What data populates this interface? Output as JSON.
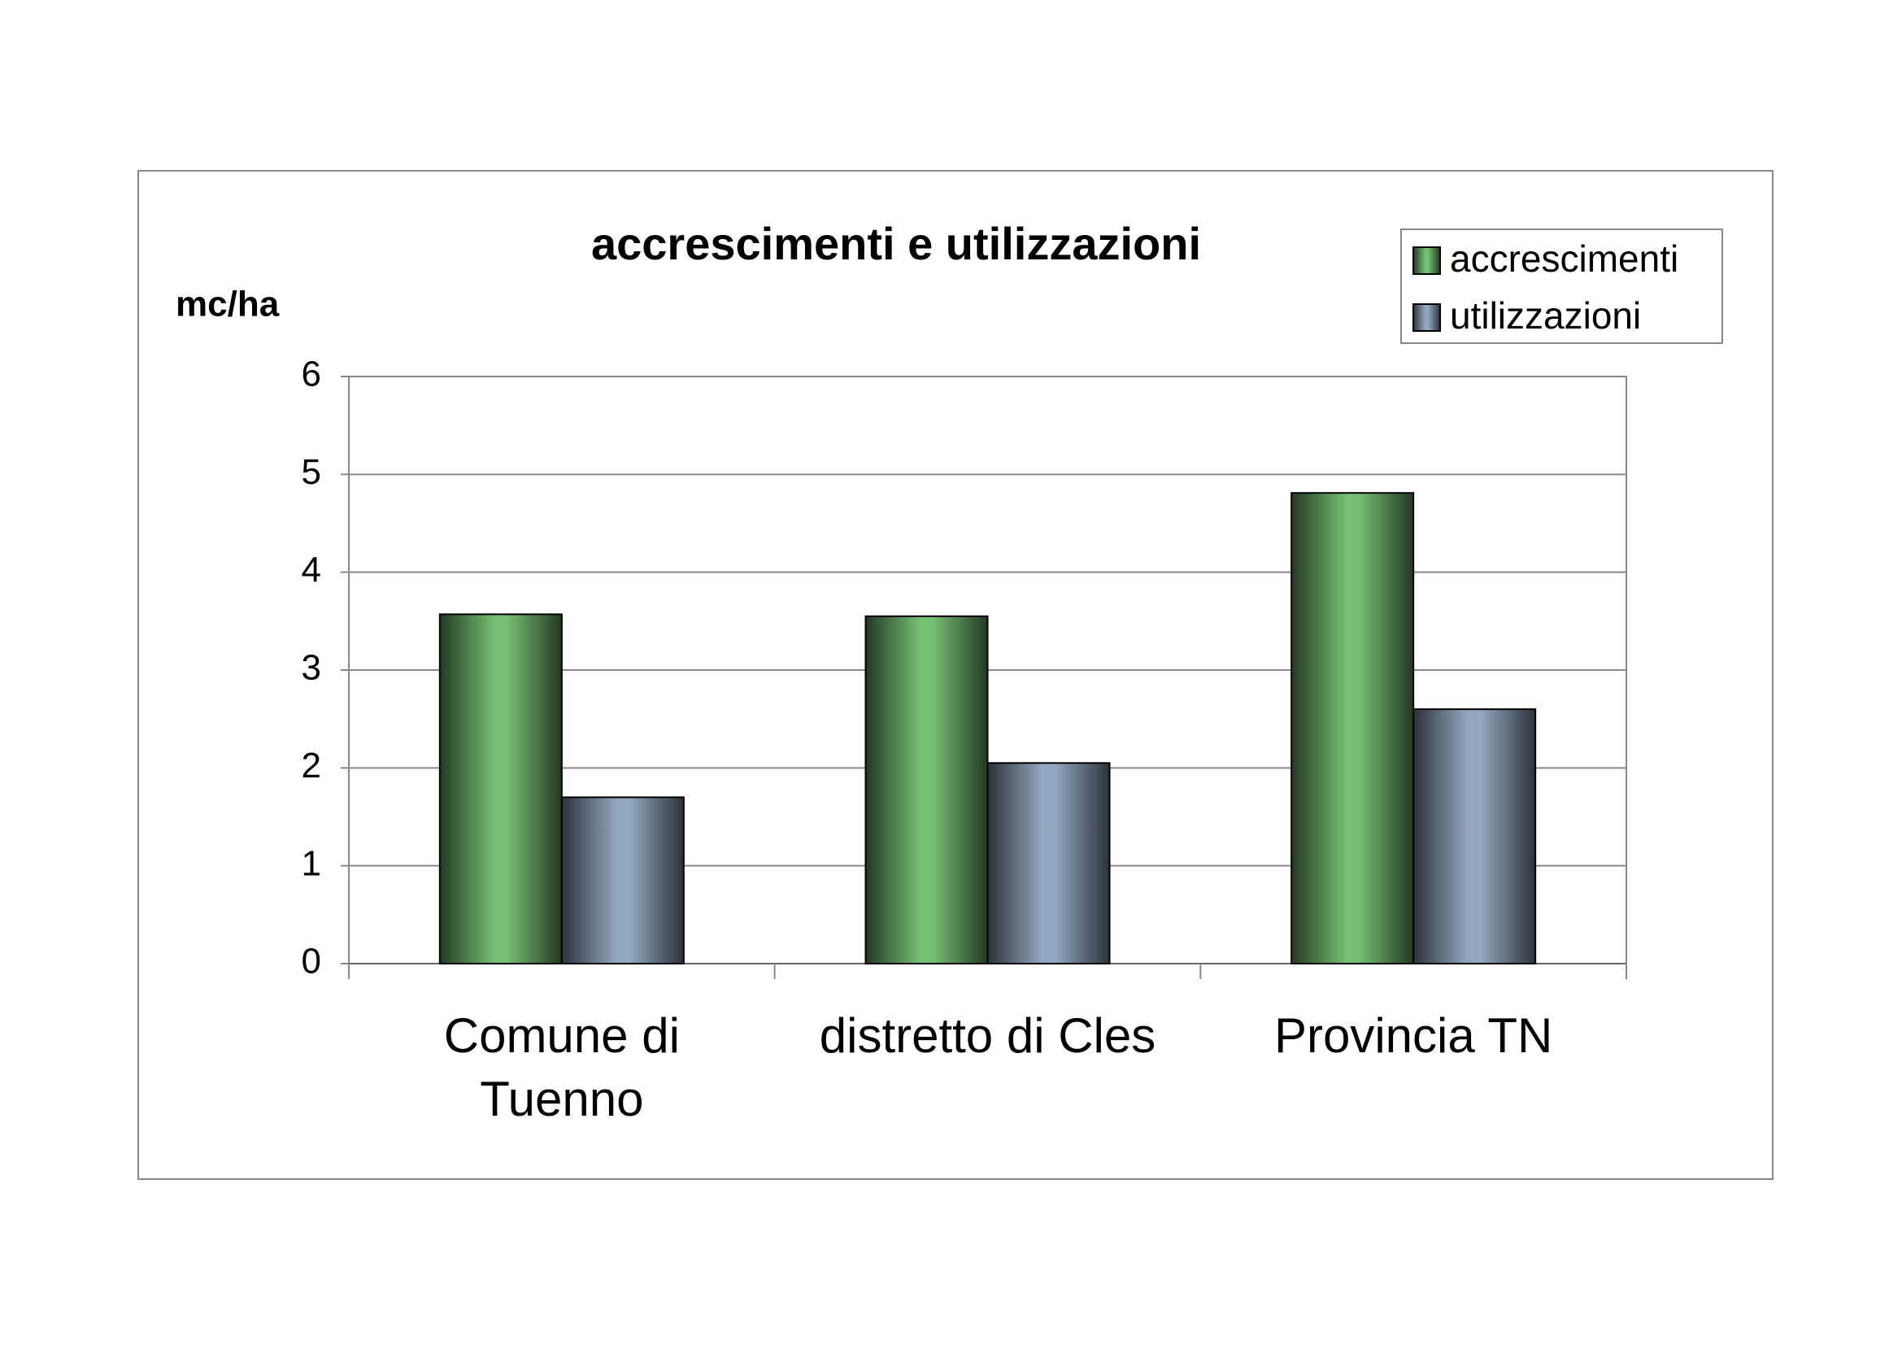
{
  "chart_data": {
    "type": "bar",
    "title": "accrescimenti e utilizzazioni",
    "y_label": "mc/ha",
    "categories": [
      "Comune di Tuenno",
      "distretto di Cles",
      "Provincia TN"
    ],
    "series": [
      {
        "name": "accrescimenti",
        "color": "#76bf73",
        "values": [
          3.57,
          3.55,
          4.81
        ]
      },
      {
        "name": "utilizzazioni",
        "color": "#93a8c0",
        "values": [
          1.7,
          2.05,
          2.6
        ]
      }
    ],
    "ylim": [
      0,
      6
    ],
    "yticks": [
      0,
      1,
      2,
      3,
      4,
      5,
      6
    ],
    "grid": true,
    "legend": "top-right"
  }
}
